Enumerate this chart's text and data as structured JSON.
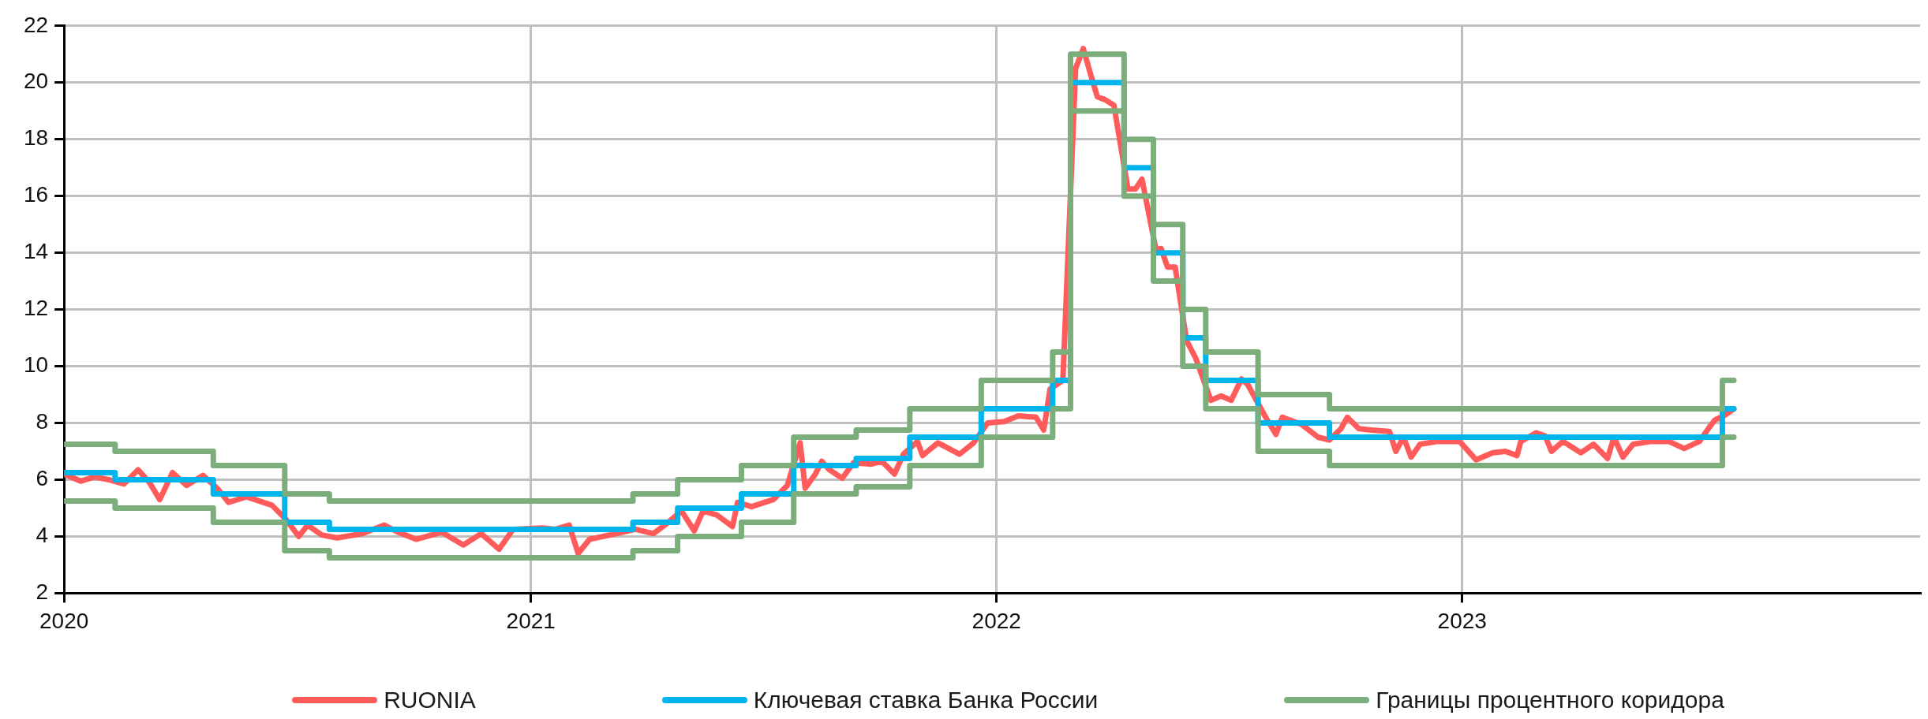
{
  "chart_data": {
    "type": "line",
    "series": [
      {
        "name": "RUONIA",
        "type": "line",
        "color": "#ff5b5b",
        "x": [
          "2020-01-01",
          "2020-01-14",
          "2020-01-25",
          "2020-02-05",
          "2020-02-17",
          "2020-02-28",
          "2020-03-08",
          "2020-03-16",
          "2020-03-26",
          "2020-04-06",
          "2020-04-19",
          "2020-04-30",
          "2020-05-09",
          "2020-05-23",
          "2020-06-12",
          "2020-06-23",
          "2020-07-03",
          "2020-07-10",
          "2020-07-21",
          "2020-08-02",
          "2020-08-22",
          "2020-09-08",
          "2020-09-19",
          "2020-10-03",
          "2020-10-23",
          "2020-11-09",
          "2020-11-23",
          "2020-12-07",
          "2020-12-18",
          "2021-01-10",
          "2021-01-20",
          "2021-01-31",
          "2021-02-07",
          "2021-02-16",
          "2021-03-09",
          "2021-03-24",
          "2021-04-07",
          "2021-04-16",
          "2021-04-29",
          "2021-05-09",
          "2021-05-16",
          "2021-05-27",
          "2021-06-08",
          "2021-06-12",
          "2021-06-23",
          "2021-07-10",
          "2021-07-21",
          "2021-07-31",
          "2021-08-04",
          "2021-08-12",
          "2021-08-17",
          "2021-08-23",
          "2021-09-02",
          "2021-09-11",
          "2021-09-25",
          "2021-10-03",
          "2021-10-13",
          "2021-10-20",
          "2021-10-31",
          "2021-11-04",
          "2021-11-16",
          "2021-12-03",
          "2021-12-14",
          "2021-12-25",
          "2022-01-07",
          "2022-01-18",
          "2022-02-01",
          "2022-02-07",
          "2022-02-12",
          "2022-02-22",
          "2022-03-04",
          "2022-03-10",
          "2022-03-16",
          "2022-03-21",
          "2022-03-27",
          "2022-04-03",
          "2022-04-14",
          "2022-04-20",
          "2022-04-25",
          "2022-05-06",
          "2022-05-10",
          "2022-05-15",
          "2022-05-21",
          "2022-05-30",
          "2022-06-06",
          "2022-06-18",
          "2022-06-26",
          "2022-07-04",
          "2022-07-12",
          "2022-07-17",
          "2022-07-31",
          "2022-08-08",
          "2022-08-13",
          "2022-08-28",
          "2022-09-10",
          "2022-09-19",
          "2022-09-28",
          "2022-10-03",
          "2022-10-12",
          "2022-10-22",
          "2022-11-05",
          "2022-11-10",
          "2022-11-16",
          "2022-11-22",
          "2022-11-29",
          "2022-12-13",
          "2022-12-30",
          "2023-01-12",
          "2023-01-25",
          "2023-02-04",
          "2023-02-13",
          "2023-02-16",
          "2023-02-28",
          "2023-03-07",
          "2023-03-12",
          "2023-03-21",
          "2023-04-04",
          "2023-04-14",
          "2023-04-25",
          "2023-04-30",
          "2023-05-07",
          "2023-05-15",
          "2023-05-29",
          "2023-06-12",
          "2023-06-24",
          "2023-07-06",
          "2023-07-13",
          "2023-07-18",
          "2023-07-25",
          "2023-08-02"
        ],
        "values": [
          6.2,
          5.95,
          6.1,
          6.0,
          5.85,
          6.35,
          5.9,
          5.3,
          6.25,
          5.8,
          6.15,
          5.7,
          5.2,
          5.4,
          5.1,
          4.6,
          4.0,
          4.4,
          4.05,
          3.95,
          4.1,
          4.4,
          4.15,
          3.9,
          4.15,
          3.7,
          4.1,
          3.55,
          4.25,
          4.3,
          4.25,
          4.4,
          3.4,
          3.9,
          4.1,
          4.25,
          4.1,
          4.4,
          4.9,
          4.2,
          4.9,
          4.75,
          4.35,
          5.2,
          5.05,
          5.3,
          5.8,
          7.3,
          5.7,
          6.2,
          6.65,
          6.35,
          6.05,
          6.6,
          6.55,
          6.65,
          6.2,
          6.9,
          7.35,
          6.85,
          7.3,
          6.9,
          7.3,
          8.0,
          8.05,
          8.25,
          8.2,
          7.75,
          9.2,
          9.5,
          20.5,
          21.2,
          20.25,
          19.5,
          19.4,
          19.2,
          16.25,
          16.25,
          16.6,
          14.1,
          14.15,
          13.5,
          13.5,
          10.9,
          10.3,
          8.8,
          8.95,
          8.8,
          9.55,
          9.35,
          8.2,
          7.6,
          8.2,
          7.95,
          7.5,
          7.4,
          7.8,
          8.2,
          7.8,
          7.75,
          7.7,
          7.0,
          7.5,
          6.8,
          7.25,
          7.35,
          7.35,
          6.7,
          6.95,
          7.0,
          6.85,
          7.35,
          7.65,
          7.55,
          7.0,
          7.35,
          6.95,
          7.25,
          6.75,
          7.5,
          6.8,
          7.25,
          7.35,
          7.35,
          7.1,
          7.35,
          7.8,
          8.1,
          8.25,
          8.5
        ]
      },
      {
        "name": "Ключевая ставка Банка России",
        "type": "step",
        "color": "#00b4ec",
        "x": [
          "2020-01-01",
          "2020-02-10",
          "2020-04-27",
          "2020-06-22",
          "2020-07-27",
          "2021-03-22",
          "2021-04-26",
          "2021-06-15",
          "2021-07-26",
          "2021-09-13",
          "2021-10-25",
          "2021-12-20",
          "2022-02-14",
          "2022-02-28",
          "2022-04-11",
          "2022-05-04",
          "2022-05-27",
          "2022-06-14",
          "2022-07-25",
          "2022-09-19",
          "2023-07-24",
          "2023-08-02"
        ],
        "values": [
          6.25,
          6,
          5.5,
          4.5,
          4.25,
          4.5,
          5,
          5.5,
          6.5,
          6.75,
          7.5,
          8.5,
          9.5,
          20,
          17,
          14,
          11,
          9.5,
          8,
          7.5,
          8.5,
          8.5
        ]
      },
      {
        "name": "Границы процентного коридора",
        "type": "step",
        "color": "#7bae7a",
        "x": [
          "2020-01-01",
          "2020-02-10",
          "2020-04-27",
          "2020-06-22",
          "2020-07-27",
          "2021-03-22",
          "2021-04-26",
          "2021-06-15",
          "2021-07-26",
          "2021-09-13",
          "2021-10-25",
          "2021-12-20",
          "2022-02-14",
          "2022-02-28",
          "2022-04-11",
          "2022-05-04",
          "2022-05-27",
          "2022-06-14",
          "2022-07-25",
          "2022-09-19",
          "2023-07-24",
          "2023-08-02"
        ],
        "values": [
          7.25,
          7,
          6.5,
          5.5,
          5.25,
          5.5,
          6,
          6.5,
          7.5,
          7.75,
          8.5,
          9.5,
          10.5,
          21,
          18,
          15,
          12,
          10.5,
          9,
          8.5,
          9.5,
          9.5
        ]
      },
      {
        "type": "step",
        "color": "#7bae7a",
        "x": [
          "2020-01-01",
          "2020-02-10",
          "2020-04-27",
          "2020-06-22",
          "2020-07-27",
          "2021-03-22",
          "2021-04-26",
          "2021-06-15",
          "2021-07-26",
          "2021-09-13",
          "2021-10-25",
          "2021-12-20",
          "2022-02-14",
          "2022-02-28",
          "2022-04-11",
          "2022-05-04",
          "2022-05-27",
          "2022-06-14",
          "2022-07-25",
          "2022-09-19",
          "2023-07-24",
          "2023-08-02"
        ],
        "values": [
          5.25,
          5,
          4.5,
          3.5,
          3.25,
          3.5,
          4,
          4.5,
          5.5,
          5.75,
          6.5,
          7.5,
          8.5,
          19,
          16,
          13,
          10,
          8.5,
          7,
          6.5,
          7.5,
          7.5
        ]
      }
    ],
    "xlim": [
      "2020-01-01",
      "2023-12-26"
    ],
    "xticks": [
      "2020",
      "2021",
      "2022",
      "2023"
    ],
    "ylim": [
      2,
      22
    ],
    "yticks": [
      2,
      4,
      6,
      8,
      10,
      12,
      14,
      16,
      18,
      20,
      22
    ],
    "grid": true,
    "legend": "bottom",
    "marker": "none",
    "line_style": "solid"
  }
}
